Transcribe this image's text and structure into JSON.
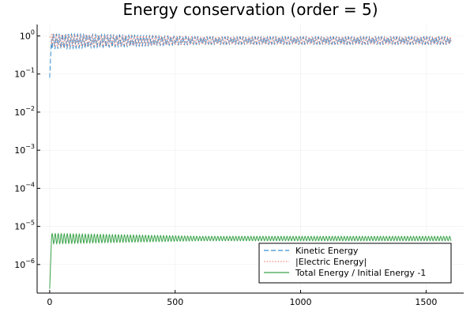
{
  "chart_data": {
    "type": "line",
    "title": "Energy conservation (order = 5)",
    "xlabel": "",
    "ylabel": "",
    "x_range": [
      0,
      1600
    ],
    "xlim": [
      -50,
      1650
    ],
    "ylim_log10": [
      -6.75,
      0.3
    ],
    "yscale": "log",
    "grid": true,
    "legend_position": "bottom-right",
    "x_ticks": [
      {
        "value": 0,
        "label": "0"
      },
      {
        "value": 500,
        "label": "500"
      },
      {
        "value": 1000,
        "label": "1000"
      },
      {
        "value": 1500,
        "label": "1500"
      }
    ],
    "y_ticks": [
      {
        "exp": 0,
        "base": "10",
        "sup": "0"
      },
      {
        "exp": -1,
        "base": "10",
        "sup": "−1"
      },
      {
        "exp": -2,
        "base": "10",
        "sup": "−2"
      },
      {
        "exp": -3,
        "base": "10",
        "sup": "−3"
      },
      {
        "exp": -4,
        "base": "10",
        "sup": "−4"
      },
      {
        "exp": -5,
        "base": "10",
        "sup": "−5"
      },
      {
        "exp": -6,
        "base": "10",
        "sup": "−6"
      }
    ],
    "series": [
      {
        "name": "Kinetic Energy",
        "color": "#3a8fd0",
        "dash": "6,3",
        "oscillation": {
          "start_value": 0.08,
          "low": 0.45,
          "high": 1.15,
          "late_low": 0.6,
          "late_high": 0.95,
          "period": 12
        }
      },
      {
        "name": "|Electric Energy|",
        "color": "#f08a7a",
        "dash": "1.5,2",
        "oscillation": {
          "start_value": 0.9,
          "low": 0.5,
          "high": 1.1,
          "late_low": 0.6,
          "late_high": 0.95,
          "period": 12
        }
      },
      {
        "name": "Total Energy / Initial Energy -1",
        "color": "#3aa34a",
        "dash": "",
        "oscillation": {
          "start_value": 2.3e-07,
          "low": 3.5e-06,
          "high": 6.5e-06,
          "late_low": 4.2e-06,
          "late_high": 5.5e-06,
          "period": 12
        }
      }
    ]
  }
}
